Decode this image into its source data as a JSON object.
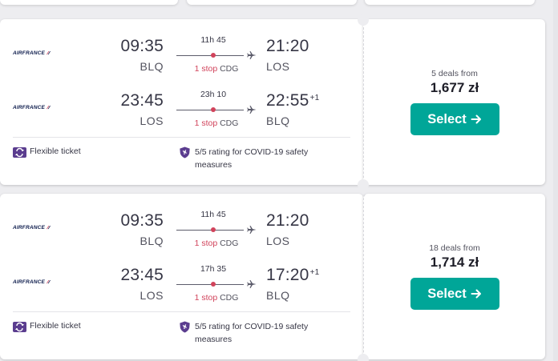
{
  "results": [
    {
      "legs": [
        {
          "airline": "AIRFRANCE",
          "dep_time": "09:35",
          "dep_code": "BLQ",
          "duration": "11h 45",
          "stop_count": "1 stop",
          "stop_airport": "CDG",
          "arr_time": "21:20",
          "arr_plus": "",
          "arr_code": "LOS"
        },
        {
          "airline": "AIRFRANCE",
          "dep_time": "23:45",
          "dep_code": "LOS",
          "duration": "23h 10",
          "stop_count": "1 stop",
          "stop_airport": "CDG",
          "arr_time": "22:55",
          "arr_plus": "+1",
          "arr_code": "BLQ"
        }
      ],
      "features": {
        "flexible": "Flexible ticket",
        "covid": "5/5 rating for COVID-19 safety measures"
      },
      "deals": "5 deals from",
      "price": "1,677 zł",
      "select_label": "Select"
    },
    {
      "legs": [
        {
          "airline": "AIRFRANCE",
          "dep_time": "09:35",
          "dep_code": "BLQ",
          "duration": "11h 45",
          "stop_count": "1 stop",
          "stop_airport": "CDG",
          "arr_time": "21:20",
          "arr_plus": "",
          "arr_code": "LOS"
        },
        {
          "airline": "AIRFRANCE",
          "dep_time": "23:45",
          "dep_code": "LOS",
          "duration": "17h 35",
          "stop_count": "1 stop",
          "stop_airport": "CDG",
          "arr_time": "17:20",
          "arr_plus": "+1",
          "arr_code": "BLQ"
        }
      ],
      "features": {
        "flexible": "Flexible ticket",
        "covid": "5/5 rating for COVID-19 safety measures"
      },
      "deals": "18 deals from",
      "price": "1,714 zł",
      "select_label": "Select"
    }
  ],
  "colors": {
    "accent": "#00a698",
    "stop": "#d1435b",
    "feature_icon": "#5b3d8f"
  },
  "icons": {
    "plane": "plane-icon",
    "flexible": "flexible-ticket-icon",
    "covid": "covid-shield-icon",
    "arrow": "arrow-right-icon"
  }
}
